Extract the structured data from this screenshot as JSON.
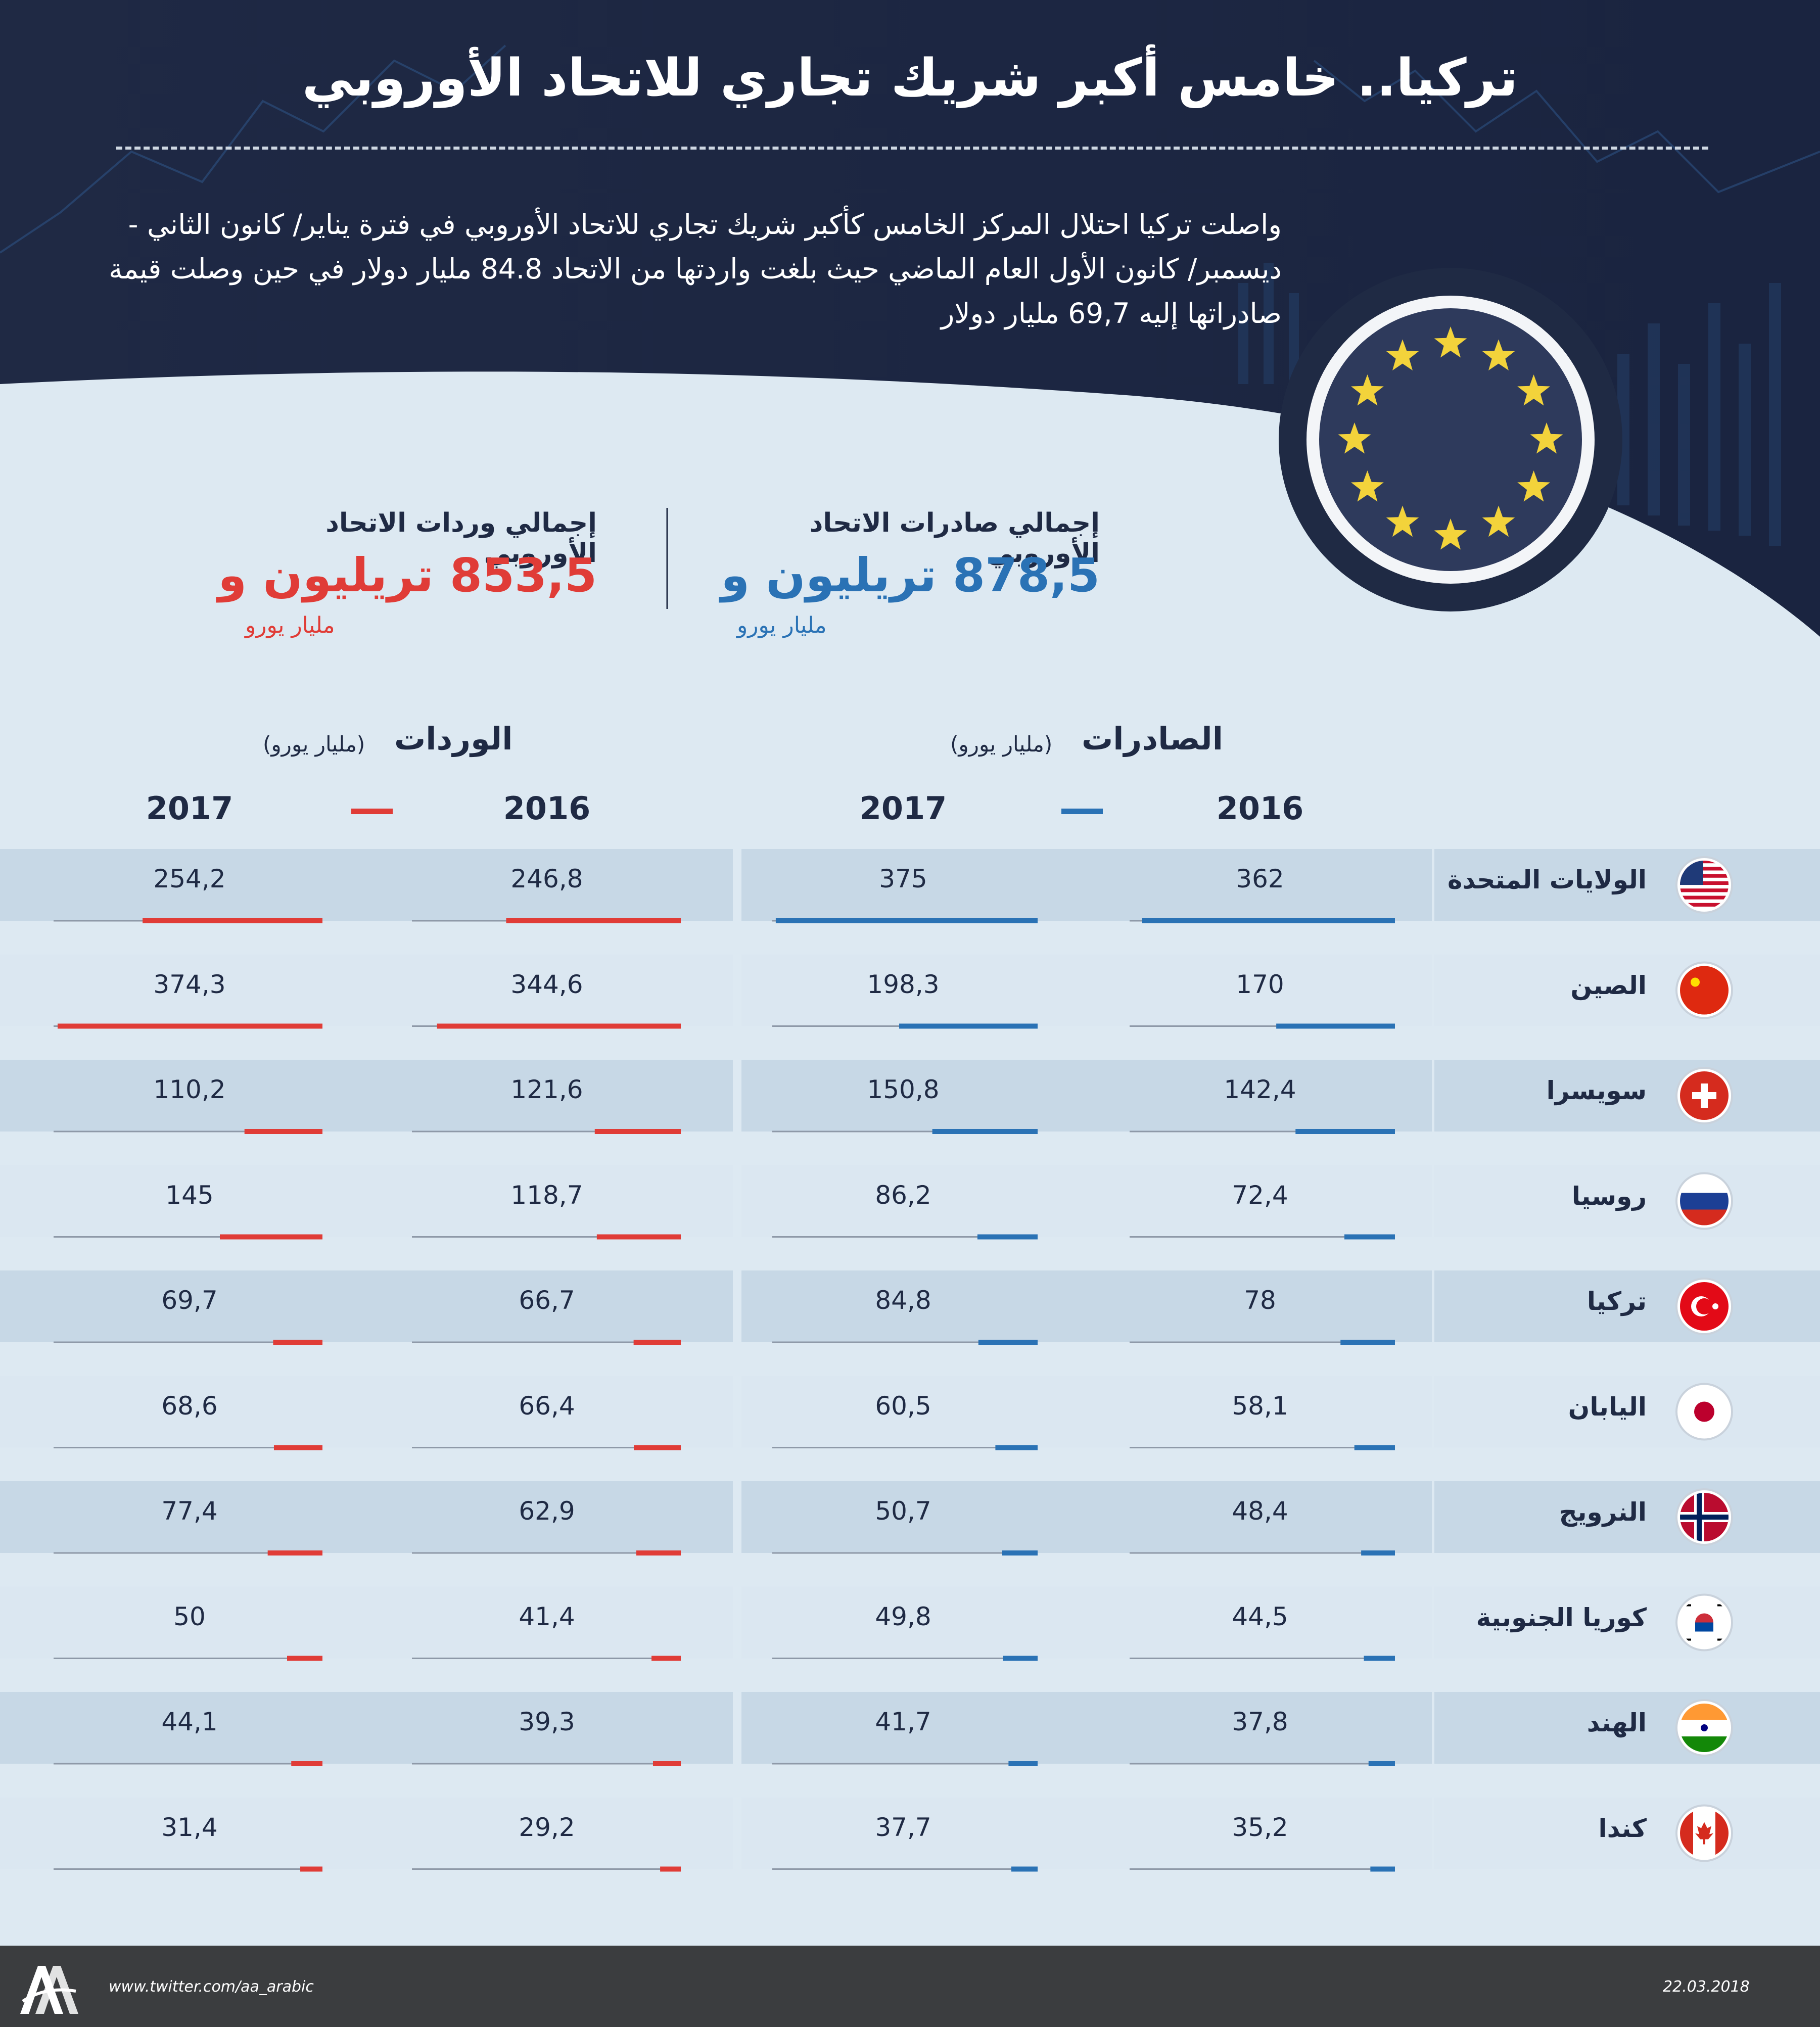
{
  "header": {
    "title": "تركيا.. خامس أكبر شريك تجاري للاتحاد الأوروبي",
    "intro": "واصلت تركيا احتلال المركز الخامس كأكبر شريك تجاري للاتحاد الأوروبي في فترة يناير/ كانون الثاني - ديسمبر/ كانون الأول العام الماضي حيث بلغت واردتها من الاتحاد 84.8 مليار دولار في حين وصلت قيمة صادراتها إليه 69,7 مليار دولار"
  },
  "totals": {
    "exports": {
      "label": "إجمالي صادرات الاتحاد الأوروبي",
      "value": "878,5 تريليون و",
      "unit": "مليار يورو"
    },
    "imports": {
      "label": "إجمالي وردات الاتحاد الأوروبي",
      "value": "853,5 تريليون و",
      "unit": "مليار يورو"
    }
  },
  "sections": {
    "exports": {
      "title": "الصادرات",
      "unit": "(مليار يورو)"
    },
    "imports": {
      "title": "الوردات",
      "unit": "(مليار يورو)"
    }
  },
  "colors": {
    "exports": "#2a72b5",
    "imports": "#e03c37",
    "navy": "#1f2a44",
    "star": "#f3d33b"
  },
  "chart_data": {
    "type": "table",
    "years": [
      "2016",
      "2017"
    ],
    "countries": [
      {
        "name": "الولايات المتحدة",
        "flag": "us-flag-icon",
        "exports": [
          "362",
          "375"
        ],
        "imports": [
          "246,8",
          "254,2"
        ]
      },
      {
        "name": "الصين",
        "flag": "china-flag-icon",
        "exports": [
          "170",
          "198,3"
        ],
        "imports": [
          "344,6",
          "374,3"
        ]
      },
      {
        "name": "سويسرا",
        "flag": "switzerland-flag-icon",
        "exports": [
          "142,4",
          "150,8"
        ],
        "imports": [
          "121,6",
          "110,2"
        ]
      },
      {
        "name": "روسيا",
        "flag": "russia-flag-icon",
        "exports": [
          "72,4",
          "86,2"
        ],
        "imports": [
          "118,7",
          "145"
        ]
      },
      {
        "name": "تركيا",
        "flag": "turkey-flag-icon",
        "exports": [
          "78",
          "84,8"
        ],
        "imports": [
          "66,7",
          "69,7"
        ]
      },
      {
        "name": "اليابان",
        "flag": "japan-flag-icon",
        "exports": [
          "58,1",
          "60,5"
        ],
        "imports": [
          "66,4",
          "68,6"
        ]
      },
      {
        "name": "النرويج",
        "flag": "norway-flag-icon",
        "exports": [
          "48,4",
          "50,7"
        ],
        "imports": [
          "62,9",
          "77,4"
        ]
      },
      {
        "name": "كوريا الجنوبية",
        "flag": "south-korea-flag-icon",
        "exports": [
          "44,5",
          "49,8"
        ],
        "imports": [
          "41,4",
          "50"
        ]
      },
      {
        "name": "الهند",
        "flag": "india-flag-icon",
        "exports": [
          "37,8",
          "41,7"
        ],
        "imports": [
          "39,3",
          "44,1"
        ]
      },
      {
        "name": "كندا",
        "flag": "canada-flag-icon",
        "exports": [
          "35,2",
          "37,7"
        ],
        "imports": [
          "29,2",
          "31,4"
        ]
      }
    ]
  },
  "footer": {
    "twitter": "www.twitter.com/aa_arabic",
    "date": "22.03.2018",
    "logo_text": "AA"
  }
}
